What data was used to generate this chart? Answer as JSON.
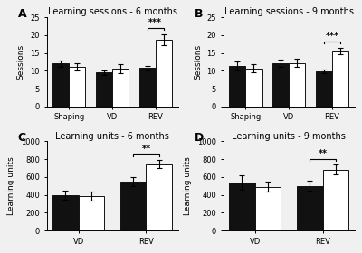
{
  "A": {
    "title": "Learning sessions - 6 months",
    "ylabel": "Sessions",
    "groups": [
      "Shaping",
      "VD",
      "REV"
    ],
    "black_means": [
      12.0,
      9.5,
      10.8
    ],
    "white_means": [
      11.2,
      10.6,
      18.8
    ],
    "black_errors": [
      0.9,
      0.7,
      0.6
    ],
    "white_errors": [
      1.0,
      1.3,
      1.5
    ],
    "ylim": [
      0,
      25
    ],
    "yticks": [
      0,
      5,
      10,
      15,
      20,
      25
    ],
    "sig_group": 2,
    "sig_label": "***"
  },
  "B": {
    "title": "Learning sessions - 9 months",
    "ylabel": "Sessions",
    "groups": [
      "Shaping",
      "VD",
      "REV"
    ],
    "black_means": [
      11.3,
      12.1,
      9.8
    ],
    "white_means": [
      10.7,
      12.2,
      15.6
    ],
    "black_errors": [
      1.2,
      0.9,
      0.5
    ],
    "white_errors": [
      1.1,
      1.2,
      0.9
    ],
    "ylim": [
      0,
      25
    ],
    "yticks": [
      0,
      5,
      10,
      15,
      20,
      25
    ],
    "sig_group": 2,
    "sig_label": "***"
  },
  "C": {
    "title": "Learning units - 6 months",
    "ylabel": "Learning units",
    "groups": [
      "VD",
      "REV"
    ],
    "black_means": [
      395,
      545
    ],
    "white_means": [
      385,
      745
    ],
    "black_errors": [
      55,
      50
    ],
    "white_errors": [
      55,
      45
    ],
    "ylim": [
      0,
      1000
    ],
    "yticks": [
      0,
      200,
      400,
      600,
      800,
      1000
    ],
    "sig_group": 1,
    "sig_label": "**"
  },
  "D": {
    "title": "Learning units - 9 months",
    "ylabel": "Learning units",
    "groups": [
      "VD",
      "REV"
    ],
    "black_means": [
      540,
      500
    ],
    "white_means": [
      490,
      680
    ],
    "black_errors": [
      80,
      55
    ],
    "white_errors": [
      55,
      55
    ],
    "ylim": [
      0,
      1000
    ],
    "yticks": [
      0,
      200,
      400,
      600,
      800,
      1000
    ],
    "sig_group": 1,
    "sig_label": "**"
  },
  "bar_width": 0.38,
  "black_color": "#111111",
  "white_color": "#ffffff",
  "edge_color": "#111111",
  "label_fontsize": 6.5,
  "title_fontsize": 7,
  "tick_fontsize": 6,
  "capsize": 2.5,
  "elinewidth": 0.8,
  "bg_color": "#f0f0f0"
}
